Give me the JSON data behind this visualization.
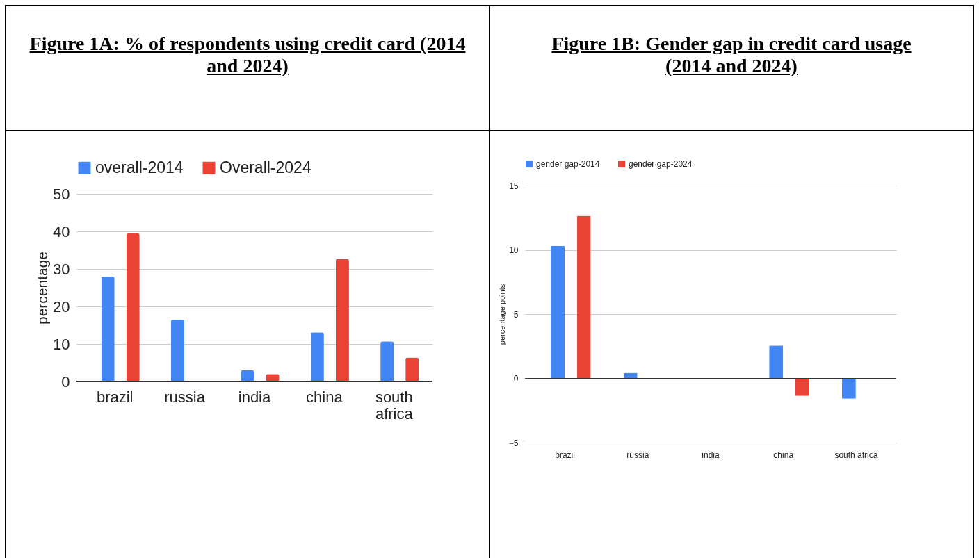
{
  "chart_data": [
    {
      "type": "bar",
      "title": "Figure 1A: % of respondents using credit card (2014 and 2024)",
      "ylabel": "percentage",
      "categories": [
        "brazil",
        "russia",
        "india",
        "china",
        "south africa"
      ],
      "ylim": [
        0,
        50
      ],
      "yticks": [
        0,
        10,
        20,
        30,
        40,
        50
      ],
      "grid": "y",
      "legend": "top",
      "series": [
        {
          "name": "overall-2014",
          "color": "#4285f4",
          "values": [
            28.0,
            16.5,
            3.0,
            13.1,
            10.7
          ]
        },
        {
          "name": "Overall-2024",
          "color": "#ea4335",
          "values": [
            39.5,
            null,
            2.0,
            32.7,
            6.4
          ]
        }
      ]
    },
    {
      "type": "bar",
      "title": "Figure 1B: Gender gap in credit card usage (2014 and 2024)",
      "ylabel": "percentage points",
      "categories": [
        "brazil",
        "russia",
        "india",
        "china",
        "south africa"
      ],
      "ylim": [
        -5,
        15
      ],
      "yticks": [
        -5,
        0,
        5,
        10,
        15
      ],
      "grid": "y",
      "legend": "top",
      "series": [
        {
          "name": "gender gap-2014",
          "color": "#4285f4",
          "values": [
            10.3,
            0.43,
            null,
            2.56,
            -1.58
          ]
        },
        {
          "name": "gender gap-2024",
          "color": "#ea4335",
          "values": [
            12.65,
            null,
            null,
            -1.37,
            null
          ]
        }
      ]
    }
  ]
}
